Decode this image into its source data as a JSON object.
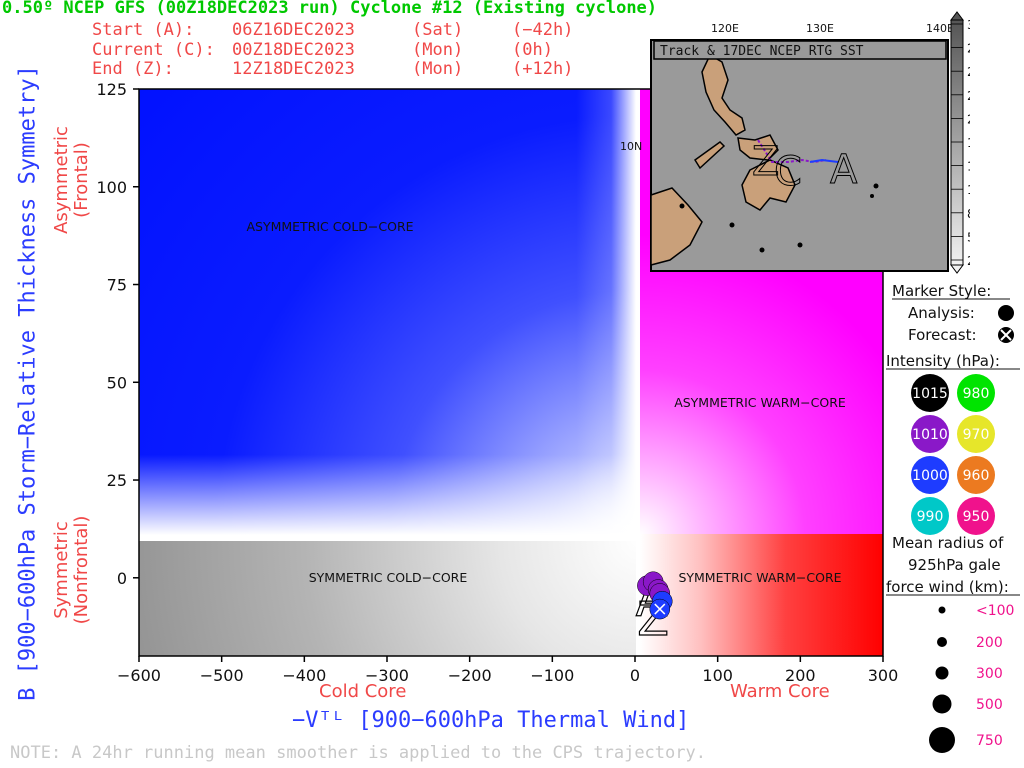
{
  "header": {
    "title": "0.50º NCEP GFS (00Z18DEC2023 run) Cyclone #12 (Existing cyclone)",
    "rows": [
      {
        "label": "Start (A):",
        "time": "06Z16DEC2023",
        "dow": "(Sat)",
        "offset": "(−42h)"
      },
      {
        "label": "Current (C):",
        "time": "00Z18DEC2023",
        "dow": "(Mon)",
        "offset": "(0h)"
      },
      {
        "label": "End (Z):",
        "time": "12Z18DEC2023",
        "dow": "(Mon)",
        "offset": "(+12h)"
      }
    ]
  },
  "axis_labels": {
    "y": "B [900−600hPa Storm−Relative Thickness Symmetry]",
    "x": "−Vᵀᴸ [900−600hPa Thermal Wind]",
    "asymmetric_line1": "Asymmetric",
    "asymmetric_line2": "(Frontal)",
    "symmetric_line1": "Symmetric",
    "symmetric_line2": "(Nonfrontal)",
    "cold_core": "Cold Core",
    "warm_core": "Warm Core"
  },
  "note": "NOTE:  A 24hr running mean smoother is applied to the CPS trajectory.",
  "inset": {
    "title": "Track & 17DEC NCEP RTG SST",
    "lon_labels": [
      "120E",
      "130E",
      "140E"
    ],
    "lat_label": "10N",
    "colorbar_ticks": [
      "30",
      "28",
      "26",
      "23",
      "20",
      "17",
      "14",
      "11",
      "8",
      "5",
      "2"
    ],
    "track_marker_start": "A",
    "track_marker_current": "C",
    "track_marker_end": "Z"
  },
  "legend": {
    "marker_style_title": "Marker Style:",
    "analysis_label": "Analysis:",
    "forecast_label": "Forecast:",
    "intensity_title": "Intensity (hPa):",
    "intensity": [
      {
        "value": "1015",
        "color": "#000000",
        "text_color": "#ffffff"
      },
      {
        "value": "980",
        "color": "#00e400",
        "text_color": "#ffffff"
      },
      {
        "value": "1010",
        "color": "#8a18c8",
        "text_color": "#ffffff"
      },
      {
        "value": "970",
        "color": "#e6e62a",
        "text_color": "#ffffff"
      },
      {
        "value": "1000",
        "color": "#1e3cff",
        "text_color": "#ffffff"
      },
      {
        "value": "960",
        "color": "#ec7a20",
        "text_color": "#ffffff"
      },
      {
        "value": "990",
        "color": "#00c8c8",
        "text_color": "#ffffff"
      },
      {
        "value": "950",
        "color": "#f0128c",
        "text_color": "#ffffff"
      }
    ],
    "radius_title_1": "Mean radius of",
    "radius_title_2": "925hPa gale",
    "radius_title_3": "force wind (km):",
    "radius_sizes": [
      "<100",
      "200",
      "300",
      "500",
      "750"
    ]
  },
  "chart_data": {
    "type": "scatter",
    "title": "0.50º NCEP GFS (00Z18DEC2023 run) Cyclone #12 (Existing cyclone)",
    "xlabel": "−Vᵀᴸ [900−600hPa Thermal Wind]",
    "ylabel": "B [900−600hPa Storm−Relative Thickness Symmetry]",
    "xlim": [
      -600,
      300
    ],
    "ylim": [
      -20,
      125
    ],
    "x_ticks": [
      -600,
      -500,
      -400,
      -300,
      -200,
      -100,
      0,
      100,
      200,
      300
    ],
    "y_ticks": [
      0,
      25,
      50,
      75,
      100,
      125
    ],
    "region_labels": [
      "ASYMMETRIC COLD−CORE",
      "ASYMMETRIC WARM−CORE",
      "SYMMETRIC COLD−CORE",
      "SYMMETRIC WARM−CORE"
    ],
    "grid": false,
    "trajectory": [
      {
        "label": "A",
        "x": 15,
        "y": -2,
        "intensity": 1010
      },
      {
        "label": "",
        "x": 22,
        "y": -1,
        "intensity": 1010
      },
      {
        "label": "",
        "x": 28,
        "y": -3,
        "intensity": 1010
      },
      {
        "label": "C",
        "x": 30,
        "y": -4,
        "intensity": 1010
      },
      {
        "label": "",
        "x": 33,
        "y": -6,
        "intensity": 1000
      },
      {
        "label": "Z",
        "x": 30,
        "y": -8,
        "intensity": 1000
      }
    ],
    "track_start_marker": {
      "label": "A",
      "x": 20,
      "y": -4
    },
    "track_end_marker": {
      "label": "Z",
      "x": 22,
      "y": -9
    }
  }
}
